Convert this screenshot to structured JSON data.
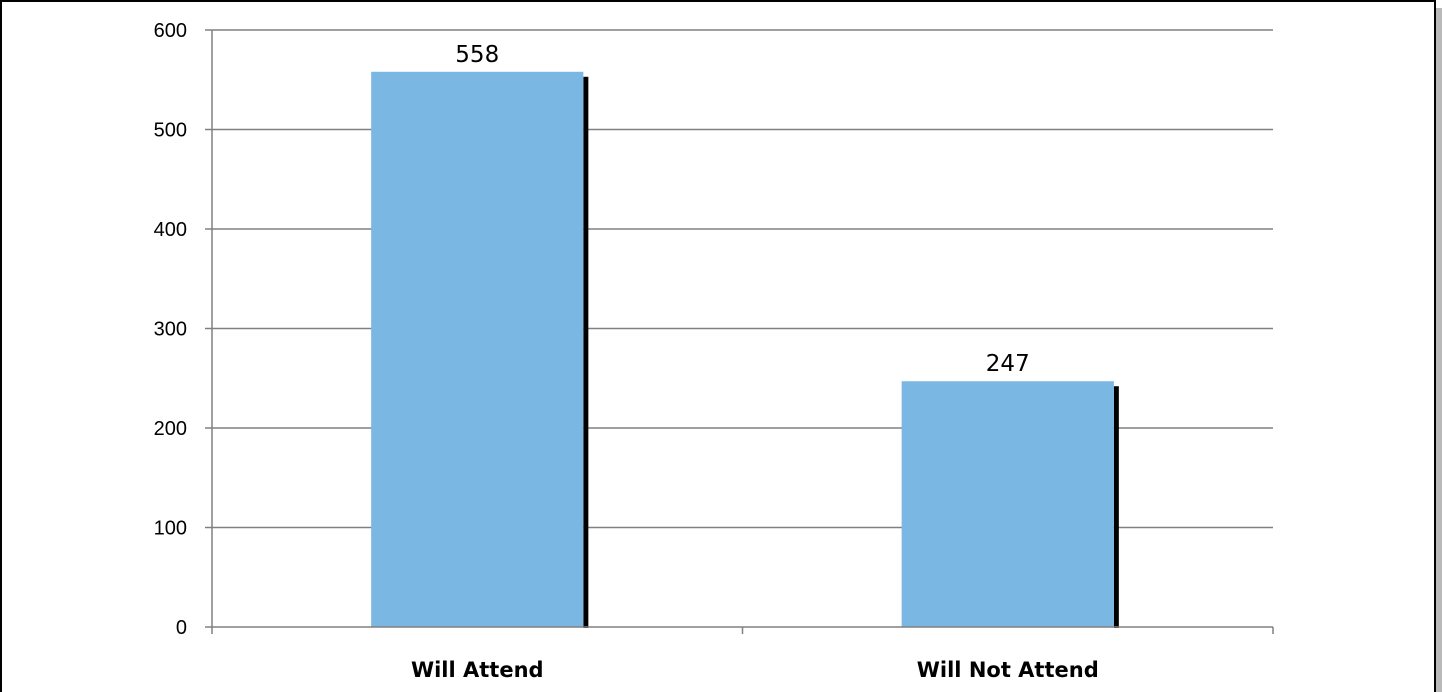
{
  "chart_data": {
    "type": "bar",
    "title": "",
    "xlabel": "",
    "ylabel": "",
    "categories": [
      "Will Attend",
      "Will Not Attend"
    ],
    "values": [
      558,
      247
    ],
    "data_labels": [
      "558",
      "247"
    ],
    "ylim": [
      0,
      600
    ],
    "yticks": [
      0,
      100,
      200,
      300,
      400,
      500,
      600
    ],
    "ytick_labels": [
      "0",
      "100",
      "200",
      "300",
      "400",
      "500",
      "600"
    ],
    "grid": true,
    "legend": "none",
    "colors": {
      "bar": "#7ab8e3",
      "bar_shadow": "#000000",
      "gridline": "#808080",
      "axis": "#808080",
      "frame": "#000000",
      "frame_shadow": "#b0b0b0"
    }
  }
}
